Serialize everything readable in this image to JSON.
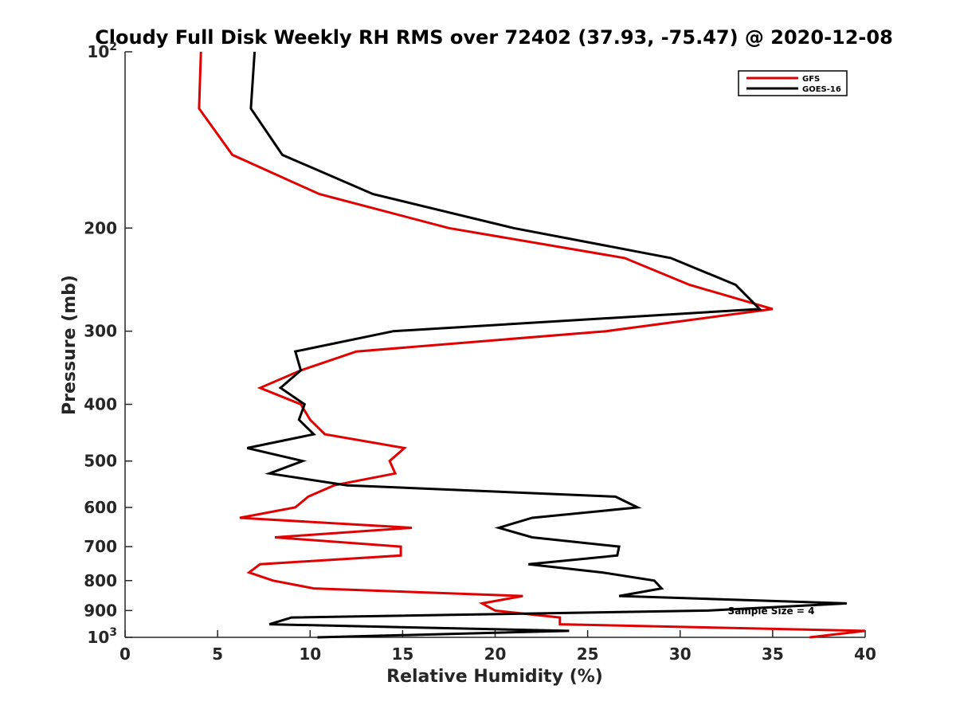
{
  "chart_data": {
    "type": "line",
    "title": "Cloudy Full Disk Weekly RH RMS over 72402 (37.93, -75.47) @ 2020-12-08",
    "xlabel": "Relative Humidity (%)",
    "ylabel": "Pressure (mb)",
    "xlim": [
      0,
      40
    ],
    "ylim": [
      100,
      1000
    ],
    "yscale": "log",
    "y_reversed": true,
    "x_ticks": [
      "0",
      "5",
      "10",
      "15",
      "20",
      "25",
      "30",
      "35",
      "40"
    ],
    "x_tick_values": [
      0,
      5,
      10,
      15,
      20,
      25,
      30,
      35,
      40
    ],
    "y_ticks": [
      {
        "value": 100,
        "base": "10",
        "exp": "2"
      },
      {
        "value": 200,
        "label": "200"
      },
      {
        "value": 300,
        "label": "300"
      },
      {
        "value": 400,
        "label": "400"
      },
      {
        "value": 500,
        "label": "500"
      },
      {
        "value": 600,
        "label": "600"
      },
      {
        "value": 700,
        "label": "700"
      },
      {
        "value": 800,
        "label": "800"
      },
      {
        "value": 900,
        "label": "900"
      },
      {
        "value": 1000,
        "base": "10",
        "exp": "3"
      }
    ],
    "legend_position": "top-right",
    "annotation": "Sample Size = 4",
    "series": [
      {
        "name": "GFS",
        "color": "#e00000",
        "points": [
          [
            4.1,
            100
          ],
          [
            4.0,
            125
          ],
          [
            5.8,
            150
          ],
          [
            10.5,
            175
          ],
          [
            17.5,
            200
          ],
          [
            27.0,
            225
          ],
          [
            30.5,
            250
          ],
          [
            35.0,
            275
          ],
          [
            26.0,
            300
          ],
          [
            12.5,
            325
          ],
          [
            9.5,
            350
          ],
          [
            7.3,
            375
          ],
          [
            9.5,
            400
          ],
          [
            10.0,
            425
          ],
          [
            10.8,
            450
          ],
          [
            15.1,
            475
          ],
          [
            14.3,
            500
          ],
          [
            14.6,
            525
          ],
          [
            11.3,
            550
          ],
          [
            9.9,
            575
          ],
          [
            9.2,
            600
          ],
          [
            6.2,
            625
          ],
          [
            15.5,
            650
          ],
          [
            8.1,
            675
          ],
          [
            14.9,
            700
          ],
          [
            14.9,
            725
          ],
          [
            7.3,
            750
          ],
          [
            6.7,
            775
          ],
          [
            8.0,
            800
          ],
          [
            10.2,
            825
          ],
          [
            21.5,
            850
          ],
          [
            19.3,
            875
          ],
          [
            20.0,
            900
          ],
          [
            23.5,
            925
          ],
          [
            23.5,
            950
          ],
          [
            40.0,
            975
          ],
          [
            37.0,
            1000
          ]
        ]
      },
      {
        "name": "GOES-16",
        "color": "#000000",
        "points": [
          [
            7.0,
            100
          ],
          [
            6.8,
            125
          ],
          [
            8.5,
            150
          ],
          [
            13.4,
            175
          ],
          [
            21.0,
            200
          ],
          [
            29.5,
            225
          ],
          [
            33.0,
            250
          ],
          [
            34.3,
            275
          ],
          [
            14.5,
            300
          ],
          [
            9.2,
            325
          ],
          [
            9.5,
            350
          ],
          [
            8.4,
            375
          ],
          [
            9.7,
            400
          ],
          [
            9.4,
            425
          ],
          [
            10.2,
            450
          ],
          [
            6.6,
            475
          ],
          [
            9.6,
            500
          ],
          [
            7.8,
            525
          ],
          [
            12.0,
            550
          ],
          [
            26.5,
            575
          ],
          [
            27.7,
            600
          ],
          [
            22.0,
            625
          ],
          [
            20.2,
            650
          ],
          [
            22.0,
            675
          ],
          [
            26.7,
            700
          ],
          [
            26.6,
            725
          ],
          [
            21.8,
            750
          ],
          [
            25.8,
            775
          ],
          [
            28.6,
            800
          ],
          [
            29.0,
            825
          ],
          [
            26.7,
            850
          ],
          [
            39.0,
            875
          ],
          [
            31.5,
            900
          ],
          [
            9.0,
            925
          ],
          [
            7.8,
            950
          ],
          [
            24.0,
            975
          ],
          [
            10.4,
            1000
          ]
        ]
      }
    ]
  }
}
